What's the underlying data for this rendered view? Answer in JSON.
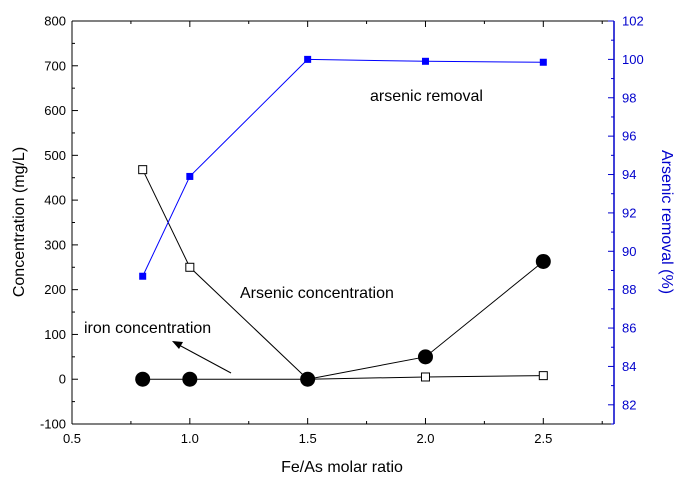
{
  "chart_data": {
    "type": "line",
    "xlabel": "Fe/As molar ratio",
    "ylabel_left": "Concentration (mg/L)",
    "ylabel_right": "Arsenic removal (%)",
    "xlim": [
      0.5,
      2.8
    ],
    "ylim_left": [
      -100,
      800
    ],
    "ylim_right": [
      81,
      102
    ],
    "x_ticks": [
      "0.5",
      "1.0",
      "1.5",
      "2.0",
      "2.5"
    ],
    "x_tick_values": [
      0.5,
      1.0,
      1.5,
      2.0,
      2.5
    ],
    "y_left_ticks": [
      "-100",
      "0",
      "100",
      "200",
      "300",
      "400",
      "500",
      "600",
      "700",
      "800"
    ],
    "y_left_tick_values": [
      -100,
      0,
      100,
      200,
      300,
      400,
      500,
      600,
      700,
      800
    ],
    "y_right_ticks": [
      "82",
      "84",
      "86",
      "88",
      "90",
      "92",
      "94",
      "96",
      "98",
      "100",
      "102"
    ],
    "y_right_tick_values": [
      82,
      84,
      86,
      88,
      90,
      92,
      94,
      96,
      98,
      100,
      102
    ],
    "grid": false,
    "colors": {
      "axis": "#000000",
      "right_axis": "#0000cc",
      "removal_series": "#0000ff"
    },
    "series": [
      {
        "label": "Arsenic concentration",
        "axis": "left",
        "marker": "open-square",
        "x": [
          0.8,
          1.0,
          1.5,
          2.0,
          2.5
        ],
        "y": [
          468,
          250,
          0,
          5,
          8
        ]
      },
      {
        "label": "iron concentration",
        "axis": "left",
        "marker": "filled-circle",
        "x": [
          0.8,
          1.0,
          1.5,
          2.0,
          2.5
        ],
        "y": [
          0,
          0,
          0,
          50,
          263
        ]
      },
      {
        "label": "arsenic removal",
        "axis": "right",
        "marker": "filled-square",
        "x": [
          0.8,
          1.0,
          1.5,
          2.0,
          2.5
        ],
        "y": [
          88.7,
          93.9,
          100.0,
          99.9,
          99.85
        ]
      }
    ],
    "annotations": [
      {
        "id": "removal",
        "text": "arsenic removal"
      },
      {
        "id": "arsenic",
        "text": "Arsenic concentration"
      },
      {
        "id": "iron",
        "text": "iron concentration"
      }
    ]
  }
}
